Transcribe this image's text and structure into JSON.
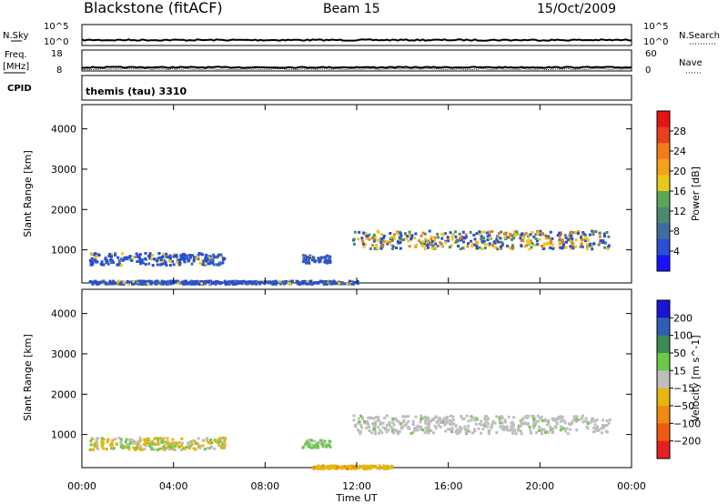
{
  "header": {
    "station": "Blackstone (fitACF)",
    "beam": "Beam 15",
    "date": "15/Oct/2009",
    "cpid_label": "CPID",
    "cpid_value": "themis (tau) 3310"
  },
  "aux_panels": {
    "nsky": {
      "left_label": "N.Sky",
      "left_ticks": [
        "10^5",
        "10^0"
      ],
      "right_label": "N.Search",
      "right_ticks": [
        "10^5",
        "10^0"
      ]
    },
    "freq": {
      "left_label": "Freq.",
      "left_unit": "[MHz]",
      "left_ticks": [
        "18",
        "8"
      ],
      "right_label": "Nave",
      "right_ticks": [
        "60",
        "0"
      ]
    }
  },
  "chart_data": [
    {
      "type": "heatmap",
      "name": "power",
      "ylabel": "Slant Range [km]",
      "yticks": [
        1000,
        2000,
        3000,
        4000
      ],
      "ylim": [
        180,
        4600
      ],
      "xlim": [
        0,
        24
      ],
      "xticks": [
        "00:00",
        "04:00",
        "08:00",
        "12:00",
        "16:00",
        "20:00",
        "00:00"
      ],
      "colorbar": {
        "label": "Power [dB]",
        "ticks": [
          "4",
          "8",
          "12",
          "16",
          "20",
          "24",
          "28"
        ],
        "colors": [
          "#1a12ff",
          "#2a4fd0",
          "#3f6e9e",
          "#4b8a6e",
          "#5aa75a",
          "#e8c81a",
          "#f4a21a",
          "#f07c1e",
          "#e6401c",
          "#e61414"
        ]
      },
      "scatter_regions": [
        {
          "t_start": 0.3,
          "t_end": 6.2,
          "range_lo": 650,
          "range_hi": 950,
          "dominant": "blue"
        },
        {
          "t_start": 9.6,
          "t_end": 10.8,
          "range_lo": 700,
          "range_hi": 900,
          "dominant": "blue"
        },
        {
          "t_start": 11.8,
          "t_end": 23.0,
          "range_lo": 1050,
          "range_hi": 1500,
          "dominant": "blue/green/orange"
        },
        {
          "t_start": 0.3,
          "t_end": 12.0,
          "range_lo": 180,
          "range_hi": 260,
          "dominant": "blue"
        }
      ]
    },
    {
      "type": "heatmap",
      "name": "velocity",
      "ylabel": "Slant Range [km]",
      "xlabel": "Time UT",
      "yticks": [
        1000,
        2000,
        3000,
        4000
      ],
      "ylim": [
        180,
        4600
      ],
      "xlim": [
        0,
        24
      ],
      "xticks": [
        "00:00",
        "04:00",
        "08:00",
        "12:00",
        "16:00",
        "20:00",
        "00:00"
      ],
      "colorbar": {
        "label": "Velocity [m s^-1]",
        "ticks": [
          "200",
          "100",
          "50",
          "15",
          "−15",
          "−50",
          "−100",
          "−200"
        ],
        "colors": [
          "#1a14d6",
          "#2e5fb4",
          "#3c8a54",
          "#6cc84a",
          "#bebebe",
          "#e8b410",
          "#f08a12",
          "#ee5a14",
          "#e62020"
        ]
      },
      "scatter_regions": [
        {
          "t_start": 0.3,
          "t_end": 6.2,
          "range_lo": 650,
          "range_hi": 950,
          "dominant": "gray/green/orange"
        },
        {
          "t_start": 9.6,
          "t_end": 10.8,
          "range_lo": 700,
          "range_hi": 900,
          "dominant": "green"
        },
        {
          "t_start": 11.8,
          "t_end": 23.0,
          "range_lo": 1050,
          "range_hi": 1500,
          "dominant": "gray"
        },
        {
          "t_start": 10.0,
          "t_end": 13.5,
          "range_lo": 180,
          "range_hi": 260,
          "dominant": "orange"
        }
      ]
    }
  ]
}
